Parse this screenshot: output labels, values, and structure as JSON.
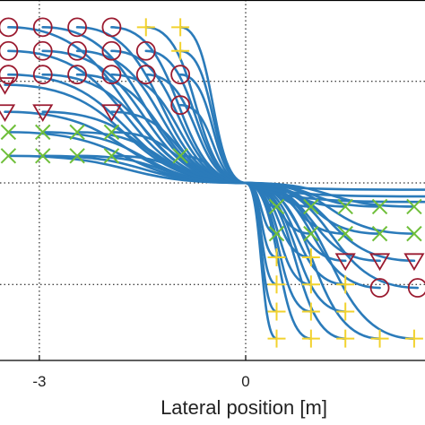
{
  "chart_data": {
    "type": "line",
    "title": "",
    "xlabel": "Lateral position [m]",
    "ylabel": "",
    "x_ticks": [
      -3,
      0
    ],
    "x_tick_labels": [
      "-3",
      "0"
    ],
    "x_range": [
      -3.6,
      2.6
    ],
    "y_range": [
      -2.6,
      2.6
    ],
    "y_gridlines": [
      -1.5,
      0,
      1.5
    ],
    "grid": "dotted",
    "legend": "none",
    "colors": {
      "trajectory": "#2b7bba",
      "circle": "#9b1b30",
      "triangle": "#9b1b30",
      "cross": "#6fbf3a",
      "plus": "#f2d22e",
      "grid": "#000000",
      "axes": "#000000"
    },
    "converge_point": [
      0,
      0
    ],
    "series": [
      {
        "marker": "circle",
        "points": [
          [
            -3.45,
            2.3
          ],
          [
            -2.95,
            2.3
          ],
          [
            -2.45,
            2.3
          ],
          [
            -1.95,
            2.3
          ],
          [
            -3.45,
            1.95
          ],
          [
            -2.95,
            1.95
          ],
          [
            -2.45,
            1.95
          ],
          [
            -1.95,
            1.95
          ],
          [
            -1.45,
            1.95
          ],
          [
            -3.45,
            1.6
          ],
          [
            -2.95,
            1.6
          ],
          [
            -2.45,
            1.6
          ],
          [
            -1.95,
            1.6
          ],
          [
            -1.45,
            1.6
          ],
          [
            -0.95,
            1.6
          ],
          [
            -0.95,
            1.15
          ],
          [
            1.95,
            -1.55
          ],
          [
            2.5,
            -1.55
          ]
        ]
      },
      {
        "marker": "triangle",
        "points": [
          [
            -3.5,
            1.45
          ],
          [
            -3.5,
            1.05
          ],
          [
            -2.95,
            1.05
          ],
          [
            -1.95,
            1.05
          ],
          [
            1.45,
            -1.15
          ],
          [
            1.95,
            -1.15
          ],
          [
            2.45,
            -1.15
          ]
        ]
      },
      {
        "marker": "cross",
        "points": [
          [
            -3.45,
            0.75
          ],
          [
            -2.95,
            0.75
          ],
          [
            -2.45,
            0.75
          ],
          [
            -1.95,
            0.75
          ],
          [
            -3.45,
            0.4
          ],
          [
            -2.95,
            0.4
          ],
          [
            -2.45,
            0.4
          ],
          [
            -1.95,
            0.4
          ],
          [
            -0.95,
            0.4
          ],
          [
            0.45,
            -0.35
          ],
          [
            0.95,
            -0.35
          ],
          [
            1.45,
            -0.35
          ],
          [
            1.95,
            -0.35
          ],
          [
            2.45,
            -0.35
          ],
          [
            0.45,
            -0.75
          ],
          [
            0.95,
            -0.75
          ],
          [
            1.45,
            -0.75
          ],
          [
            1.95,
            -0.75
          ],
          [
            2.45,
            -0.75
          ]
        ]
      },
      {
        "marker": "plus",
        "points": [
          [
            -1.45,
            2.3
          ],
          [
            -0.95,
            2.3
          ],
          [
            -0.95,
            1.95
          ],
          [
            0.45,
            -1.1
          ],
          [
            0.95,
            -1.1
          ],
          [
            0.45,
            -1.5
          ],
          [
            0.95,
            -1.5
          ],
          [
            1.45,
            -1.5
          ],
          [
            0.45,
            -1.9
          ],
          [
            0.95,
            -1.9
          ],
          [
            1.45,
            -1.9
          ],
          [
            0.45,
            -2.3
          ],
          [
            0.95,
            -2.3
          ],
          [
            1.45,
            -2.3
          ],
          [
            1.95,
            -2.3
          ],
          [
            2.45,
            -2.3
          ]
        ]
      }
    ]
  }
}
